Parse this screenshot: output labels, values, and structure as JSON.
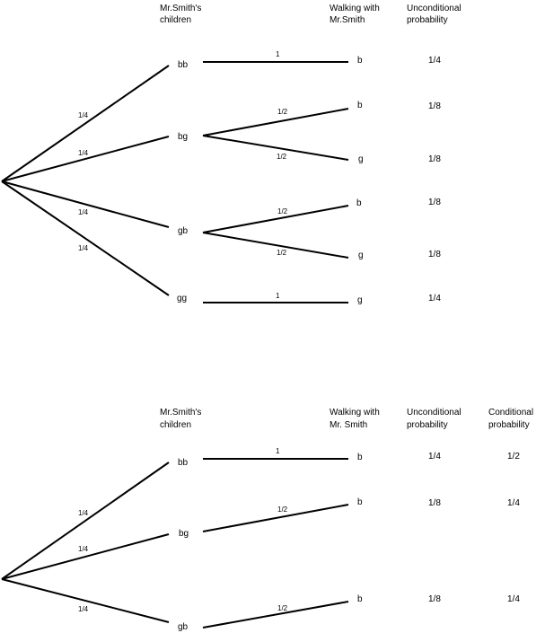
{
  "top_tree": {
    "headers": {
      "children": [
        "Mr.Smith's",
        "children"
      ],
      "walking": [
        "Walking with",
        "Mr.Smith"
      ],
      "uncond": [
        "Unconditional",
        "probability"
      ]
    },
    "root_probs": [
      "1/4",
      "1/4",
      "1/4",
      "1/4"
    ],
    "nodes": [
      "bb",
      "bg",
      "gb",
      "gg"
    ],
    "branch_probs": [
      "1",
      "1/2",
      "1/2",
      "1/2",
      "1/2",
      "1"
    ],
    "leaves": [
      "b",
      "b",
      "g",
      "b",
      "g",
      "g"
    ],
    "unconditional": [
      "1/4",
      "1/8",
      "1/8",
      "1/8",
      "1/8",
      "1/4"
    ]
  },
  "bottom_tree": {
    "headers": {
      "children": [
        "Mr.Smith's",
        "children"
      ],
      "walking": [
        "Walking with",
        "Mr. Smith"
      ],
      "uncond": [
        "Unconditional",
        "probability"
      ],
      "cond": [
        "Conditional",
        "probability"
      ]
    },
    "root_probs": [
      "1/4",
      "1/4",
      "1/4"
    ],
    "nodes": [
      "bb",
      "bg",
      "gb"
    ],
    "branch_probs": [
      "1",
      "1/2",
      "1/2"
    ],
    "leaves": [
      "b",
      "b",
      "b"
    ],
    "unconditional": [
      "1/4",
      "1/8",
      "1/8"
    ],
    "conditional": [
      "1/2",
      "1/4",
      "1/4"
    ]
  }
}
